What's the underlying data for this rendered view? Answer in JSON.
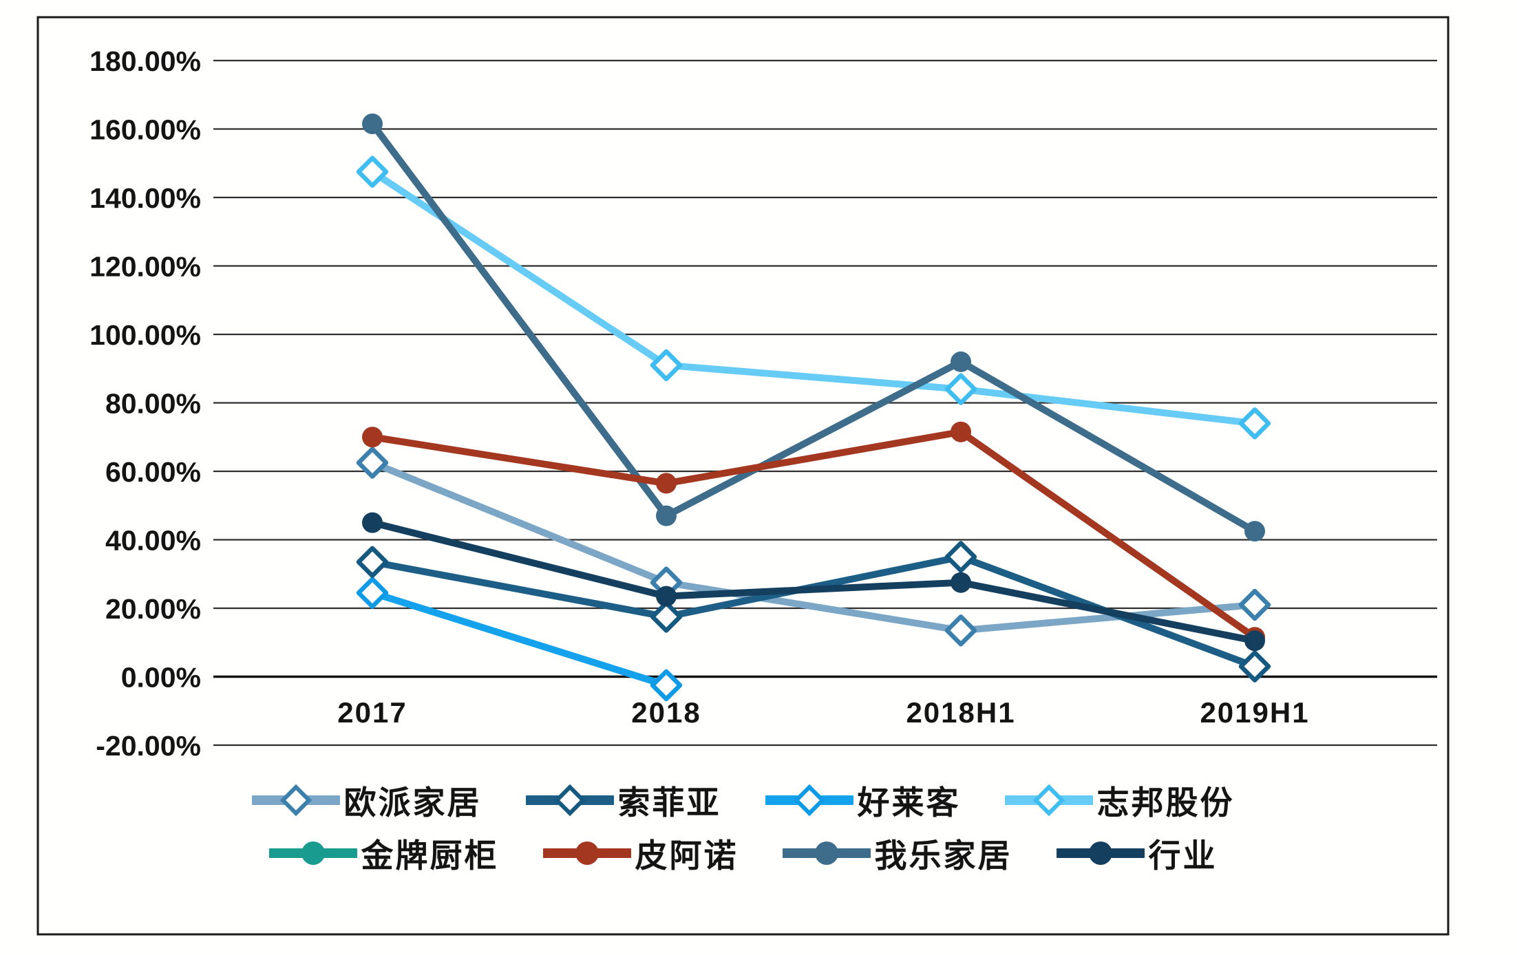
{
  "chart_data": {
    "type": "line",
    "title": "",
    "categories": [
      "2017",
      "2018",
      "2018H1",
      "2019H1"
    ],
    "y_axis": {
      "min": -20,
      "max": 180,
      "step": 20,
      "unit": "%",
      "tick_labels": [
        "180.00%",
        "160.00%",
        "140.00%",
        "120.00%",
        "100.00%",
        "80.00%",
        "60.00%",
        "40.00%",
        "20.00%",
        "0.00%",
        "-20.00%"
      ]
    },
    "grid": true,
    "legend_position": "bottom",
    "series": [
      {
        "name": "欧派家居",
        "marker": "diamond",
        "color": "#7CA6C6",
        "marker_color": "#3B7FAC",
        "values": [
          62.5,
          27.5,
          13.5,
          21
        ]
      },
      {
        "name": "索菲亚",
        "marker": "diamond",
        "color": "#1C5E86",
        "marker_color": "#155880",
        "values": [
          33.5,
          17.5,
          35,
          3
        ]
      },
      {
        "name": "好莱客",
        "marker": "diamond",
        "color": "#14A2EC",
        "marker_color": "#0E9AE4",
        "values": [
          24.5,
          -2.5,
          null,
          null
        ]
      },
      {
        "name": "志邦股份",
        "marker": "diamond",
        "color": "#66CBF5",
        "marker_color": "#3FBCF0",
        "values": [
          147.5,
          91,
          84,
          74
        ]
      },
      {
        "name": "金牌厨柜",
        "marker": "circle",
        "color": "#199B90",
        "marker_color": "#199B90",
        "values": [
          null,
          null,
          null,
          null
        ]
      },
      {
        "name": "皮阿诺",
        "marker": "circle",
        "color": "#A4371F",
        "marker_color": "#A4371F",
        "values": [
          70,
          56.5,
          71.5,
          11.5
        ]
      },
      {
        "name": "我乐家居",
        "marker": "circle",
        "color": "#3E6D8C",
        "marker_color": "#3E6D8C",
        "values": [
          161.5,
          47,
          92,
          42.5
        ]
      },
      {
        "name": "行业",
        "marker": "circle",
        "color": "#143F5E",
        "marker_color": "#143F5E",
        "values": [
          45,
          23.5,
          27.5,
          10.5
        ]
      }
    ],
    "draw_order": [
      0,
      3,
      6,
      4,
      5,
      2,
      1,
      7
    ]
  },
  "legend": {
    "rows": [
      [
        "欧派家居",
        "索菲亚",
        "好莱客",
        "志邦股份"
      ],
      [
        "金牌厨柜",
        "皮阿诺",
        "我乐家居",
        "行业"
      ]
    ]
  }
}
